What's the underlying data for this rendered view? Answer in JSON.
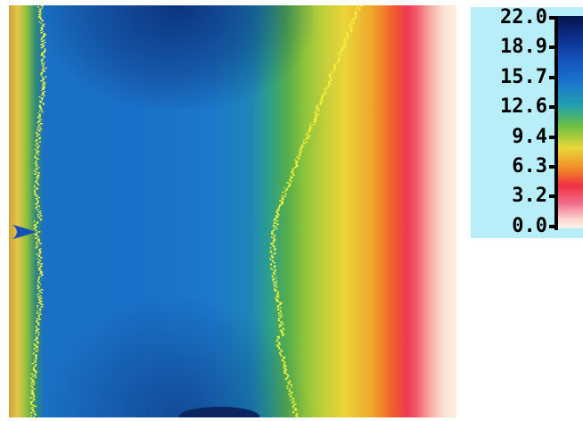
{
  "colorbar": {
    "ticks": [
      {
        "value": 22.0,
        "label": "22.0"
      },
      {
        "value": 18.9,
        "label": "18.9"
      },
      {
        "value": 15.7,
        "label": "15.7"
      },
      {
        "value": 12.6,
        "label": "12.6"
      },
      {
        "value": 9.4,
        "label": "9.4"
      },
      {
        "value": 6.3,
        "label": "6.3"
      },
      {
        "value": 3.2,
        "label": "3.2"
      },
      {
        "value": 0.0,
        "label": "0.0"
      }
    ],
    "range": [
      0.0,
      22.0
    ],
    "colors": {
      "high": "#06144a",
      "mid": "#e8d83a",
      "low": "#fff4ea"
    }
  },
  "thermal_image": {
    "contour_color": "#f4f23a",
    "background_panel_color": "#b7eef7"
  }
}
